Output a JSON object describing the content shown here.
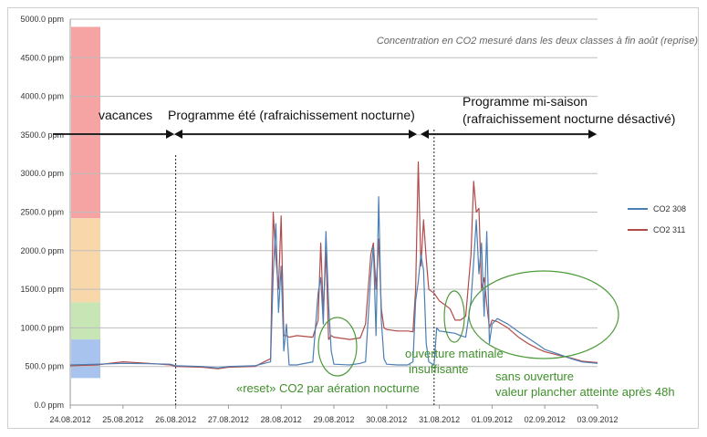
{
  "chart_data": {
    "type": "line",
    "title": "Concentration en CO2 mesuré dans les deux classes à fin août (reprise)",
    "xlabel": "",
    "ylabel": "",
    "ylim": [
      0,
      5000
    ],
    "y_ticks": [
      "0.0 ppm",
      "500.0 ppm",
      "1000.0 ppm",
      "1500.0 ppm",
      "2000.0 ppm",
      "2500.0 ppm",
      "3000.0 ppm",
      "3500.0 ppm",
      "4000.0 ppm",
      "4500.0 ppm",
      "5000.0 ppm"
    ],
    "x_ticks": [
      "24.08.2012",
      "25.08.2012",
      "26.08.2012",
      "27.08.2012",
      "28.08.2012",
      "29.08.2012",
      "30.08.2012",
      "31.08.2012",
      "01.09.2012",
      "02.09.2012",
      "03.09.2012"
    ],
    "grid": true,
    "legend_position": "right",
    "colors": {
      "co2_308": "#4a7fb5",
      "co2_311": "#b24a4a"
    },
    "background_bands": [
      {
        "from": 2420,
        "to": 4900,
        "color": "#f5a3a3"
      },
      {
        "from": 1330,
        "to": 2420,
        "color": "#f8d8ab"
      },
      {
        "from": 850,
        "to": 1330,
        "color": "#c8e6b5"
      },
      {
        "from": 350,
        "to": 850,
        "color": "#a9c3ef"
      }
    ],
    "series": [
      {
        "name": "CO2 308",
        "color": "#4a7fb5",
        "x": [
          24.0,
          24.5,
          25.0,
          25.5,
          25.9,
          26.0,
          26.5,
          26.8,
          27.0,
          27.5,
          27.8,
          27.85,
          27.9,
          27.95,
          28.0,
          28.05,
          28.1,
          28.15,
          28.3,
          28.6,
          28.7,
          28.75,
          28.8,
          28.85,
          28.9,
          28.95,
          29.0,
          29.3,
          29.5,
          29.6,
          29.7,
          29.75,
          29.8,
          29.85,
          29.9,
          29.95,
          30.0,
          30.2,
          30.4,
          30.5,
          30.55,
          30.6,
          30.65,
          30.7,
          30.75,
          30.8,
          30.9,
          30.95,
          31.0,
          31.1,
          31.2,
          31.3,
          31.4,
          31.5,
          31.6,
          31.65,
          31.7,
          31.75,
          31.8,
          31.85,
          31.9,
          31.95,
          32.0,
          32.1,
          32.3,
          32.5,
          32.7,
          32.9,
          33.0,
          33.3,
          33.5,
          33.7,
          34.0
        ],
        "values": [
          520,
          530,
          540,
          535,
          530,
          510,
          500,
          480,
          500,
          510,
          560,
          1700,
          2350,
          1200,
          1800,
          700,
          1050,
          520,
          520,
          560,
          1450,
          1650,
          1050,
          2250,
          1300,
          700,
          530,
          520,
          540,
          560,
          1700,
          2050,
          900,
          2700,
          1100,
          600,
          530,
          520,
          520,
          560,
          1350,
          1600,
          1950,
          1750,
          800,
          560,
          520,
          1000,
          960,
          950,
          940,
          930,
          900,
          880,
          1350,
          1850,
          2400,
          1700,
          2100,
          1150,
          2250,
          800,
          1050,
          1120,
          1050,
          950,
          860,
          770,
          720,
          650,
          600,
          560,
          540
        ]
      },
      {
        "name": "CO2 311",
        "color": "#b24a4a",
        "x": [
          24.0,
          24.5,
          25.0,
          25.5,
          25.9,
          26.0,
          26.5,
          26.8,
          27.0,
          27.5,
          27.8,
          27.85,
          27.9,
          27.95,
          28.0,
          28.05,
          28.1,
          28.15,
          28.3,
          28.6,
          28.7,
          28.75,
          28.8,
          28.85,
          28.9,
          28.95,
          29.0,
          29.3,
          29.5,
          29.6,
          29.7,
          29.75,
          29.8,
          29.85,
          29.9,
          29.95,
          30.0,
          30.2,
          30.4,
          30.5,
          30.55,
          30.6,
          30.65,
          30.7,
          30.75,
          30.8,
          30.9,
          30.95,
          31.0,
          31.1,
          31.2,
          31.3,
          31.4,
          31.5,
          31.6,
          31.65,
          31.7,
          31.75,
          31.8,
          31.85,
          31.9,
          31.95,
          32.0,
          32.1,
          32.3,
          32.5,
          32.7,
          32.9,
          33.0,
          33.3,
          33.5,
          33.7,
          34.0
        ],
        "values": [
          510,
          520,
          560,
          540,
          520,
          500,
          490,
          470,
          490,
          500,
          600,
          2500,
          1900,
          1500,
          2450,
          900,
          900,
          880,
          900,
          880,
          1100,
          2100,
          1200,
          2000,
          850,
          900,
          880,
          850,
          870,
          1050,
          1950,
          2100,
          1500,
          2150,
          1250,
          1000,
          980,
          960,
          960,
          950,
          1500,
          3150,
          1800,
          2400,
          1900,
          1500,
          1450,
          1400,
          1350,
          1300,
          1250,
          1100,
          1100,
          1150,
          1950,
          2900,
          2500,
          2550,
          1500,
          1650,
          1300,
          1000,
          1100,
          1080,
          1000,
          880,
          790,
          720,
          690,
          640,
          610,
          570,
          550
        ]
      }
    ],
    "annotations": {
      "vacances": "vacances",
      "programme_ete": "Programme été (rafraichissement nocturne)",
      "programme_mi_saison_1": "Programme mi-saison",
      "programme_mi_saison_2": "(rafraichissement nocturne désactivé)",
      "reset": "«reset» CO2 par aération nocturne",
      "ouverture_1": "ouverture matinale",
      "ouverture_2": "insuffisante",
      "sans_1": "sans ouverture",
      "sans_2": "valeur plancher atteinte après 48h"
    }
  }
}
